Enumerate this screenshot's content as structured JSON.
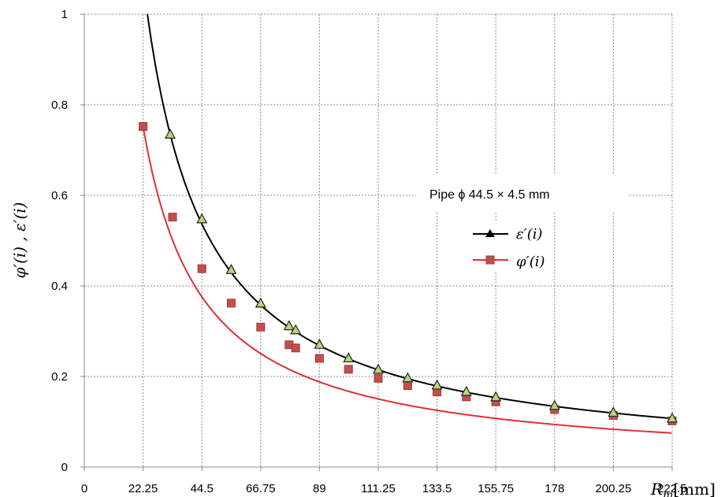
{
  "chart_data": {
    "type": "line",
    "ylabel": "φ′(i) , ε′(i)",
    "xlabel_var": "R",
    "xlabel_sub": "m",
    "xlabel_unit": "[mm]",
    "legend_title": "Pipe  ϕ 44.5 × 4.5 mm",
    "legend_placement": "right-center",
    "grid": true,
    "xlim": [
      0,
      222.5
    ],
    "ylim": [
      0,
      1
    ],
    "xticks": [
      "0",
      "22.25",
      "44.5",
      "66.75",
      "89",
      "111.25",
      "133.5",
      "155.75",
      "178",
      "200.25",
      "222.5"
    ],
    "yticks": [
      "0",
      "0.2",
      "0.4",
      "0.6",
      "0.8",
      "1"
    ],
    "series": [
      {
        "name": "ε′(i)",
        "color": "#000000",
        "marker": "triangle",
        "marker_fill": "#b5d67a",
        "x": [
          32.5,
          44.5,
          55.6,
          66.75,
          77.5,
          80,
          89,
          100,
          111.25,
          122.4,
          133.5,
          144.6,
          155.75,
          178,
          200.25,
          222.5
        ],
        "y": [
          0.735,
          0.548,
          0.436,
          0.362,
          0.312,
          0.303,
          0.271,
          0.241,
          0.216,
          0.197,
          0.181,
          0.167,
          0.155,
          0.136,
          0.121,
          0.108
        ]
      },
      {
        "name": "φ′(i)",
        "color": "#e03030",
        "marker": "square",
        "marker_fill": "#c0504d",
        "x": [
          22.25,
          33.4,
          44.5,
          55.6,
          66.75,
          77.5,
          80,
          89,
          100,
          111.25,
          122.4,
          133.5,
          144.6,
          155.75,
          178,
          200.25,
          222.5
        ],
        "y": [
          0.752,
          0.552,
          0.438,
          0.362,
          0.309,
          0.27,
          0.263,
          0.24,
          0.216,
          0.196,
          0.18,
          0.166,
          0.155,
          0.144,
          0.127,
          0.114,
          0.102
        ]
      }
    ]
  }
}
